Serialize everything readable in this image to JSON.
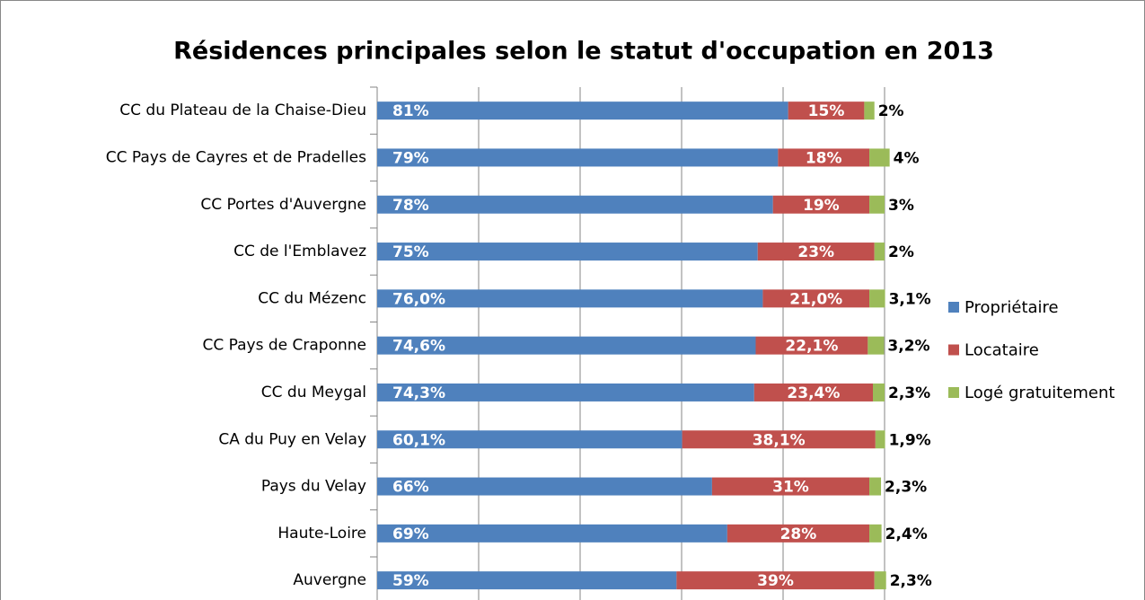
{
  "chart_data": {
    "type": "stacked_bar_horizontal",
    "title": "Résidences principales selon le statut d'occupation en 2013",
    "categories": [
      "CC du Plateau de la Chaise-Dieu",
      "CC Pays de Cayres et de Pradelles",
      "CC Portes d'Auvergne",
      "CC de l'Emblavez",
      "CC du Mézenc",
      "CC Pays de Craponne",
      "CC du Meygal",
      "CA du Puy en Velay",
      "Pays du Velay",
      "Haute-Loire",
      "Auvergne"
    ],
    "series": [
      {
        "name": "Propriétaire",
        "color": "#4f81bd",
        "values": [
          81,
          79,
          78,
          75,
          76.0,
          74.6,
          74.3,
          60.1,
          66,
          69,
          59
        ],
        "value_labels": [
          "81%",
          "79%",
          "78%",
          "75%",
          "76,0%",
          "74,6%",
          "74,3%",
          "60,1%",
          "66%",
          "69%",
          "59%"
        ]
      },
      {
        "name": "Locataire",
        "color": "#c0504d",
        "values": [
          15,
          18,
          19,
          23,
          21.0,
          22.1,
          23.4,
          38.1,
          31,
          28,
          39
        ],
        "value_labels": [
          "15%",
          "18%",
          "19%",
          "23%",
          "21,0%",
          "22,1%",
          "23,4%",
          "38,1%",
          "31%",
          "28%",
          "39%"
        ]
      },
      {
        "name": "Logé gratuitement",
        "color": "#9bbb59",
        "values": [
          2,
          4,
          3,
          2,
          3.1,
          3.2,
          2.3,
          1.9,
          2.3,
          2.4,
          2.3
        ],
        "value_labels": [
          "2%",
          "4%",
          "3%",
          "2%",
          "3,1%",
          "3,2%",
          "2,3%",
          "1,9%",
          "2,3%",
          "2,4%",
          "2,3%"
        ]
      }
    ],
    "xlim": [
      0,
      100
    ],
    "xticks": [
      0,
      20,
      40,
      60,
      80,
      100
    ],
    "grid": true,
    "legend": "right"
  }
}
